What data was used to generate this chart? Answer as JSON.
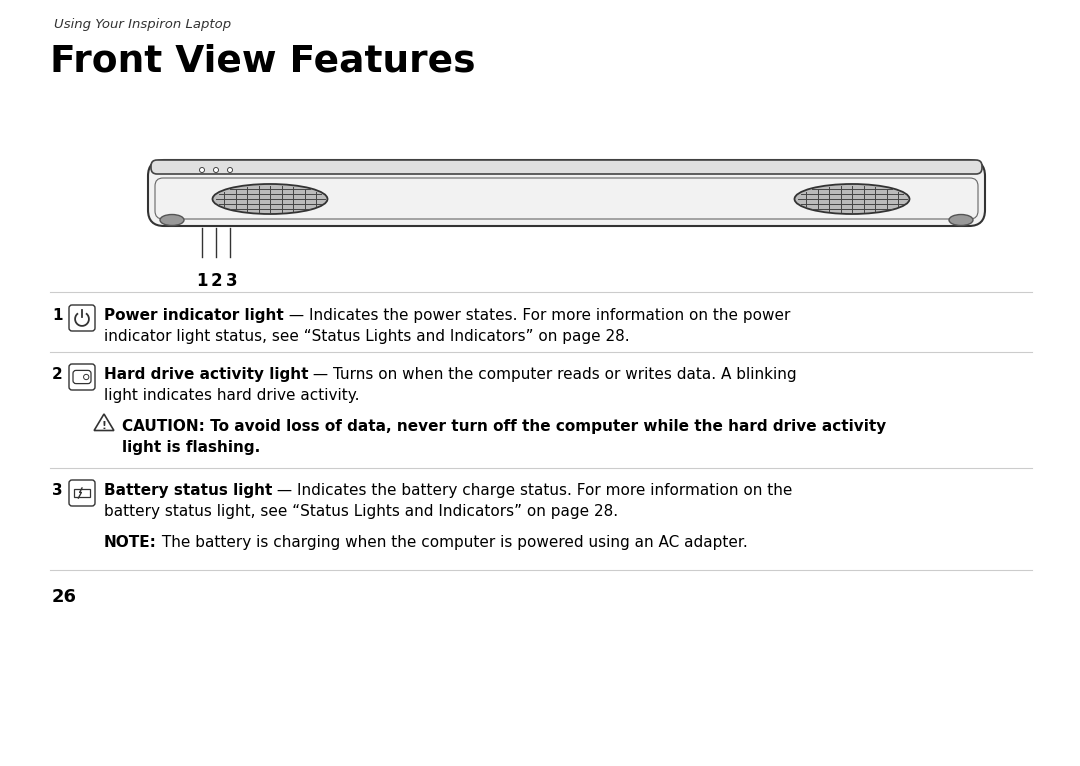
{
  "bg_color": "#ffffff",
  "subtitle": "Using Your Inspiron Laptop",
  "title": "Front View Features",
  "page_number": "26",
  "item1_bold": "Power indicator light",
  "item1_rest": " — Indicates the power states. For more information on the power",
  "item1_line2": "indicator light status, see “Status Lights and Indicators” on page 28.",
  "item2_bold": "Hard drive activity light",
  "item2_rest": " — Turns on when the computer reads or writes data. A blinking",
  "item2_line2": "light indicates hard drive activity.",
  "caution_line1": "CAUTION: To avoid loss of data, never turn off the computer while the hard drive activity",
  "caution_line2": "light is flashing.",
  "item3_bold": "Battery status light",
  "item3_rest": " — Indicates the battery charge status. For more information on the",
  "item3_line2": "battery status light, see “Status Lights and Indicators” on page 28.",
  "note_bold": "NOTE:",
  "note_rest": " The battery is charging when the computer is powered using an AC adapter.",
  "sep_color": "#cccccc",
  "text_color": "#000000",
  "subtitle_color": "#333333",
  "diagram_edge": "#333333",
  "diagram_fill": "#f2f2f2",
  "speaker_fill": "#bbbbbb",
  "foot_fill": "#999999"
}
